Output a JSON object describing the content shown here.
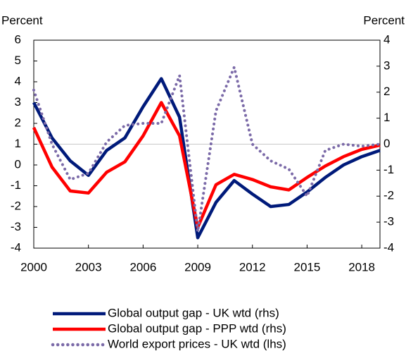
{
  "chart_data": {
    "type": "line",
    "y_label": "Percent",
    "y2_label": "Percent",
    "x": [
      2000,
      2001,
      2002,
      2003,
      2004,
      2005,
      2006,
      2007,
      2008,
      2009,
      2010,
      2011,
      2012,
      2013,
      2014,
      2015,
      2016,
      2017,
      2018,
      2019
    ],
    "xlim": [
      2000,
      2019
    ],
    "xticks": [
      2000,
      2003,
      2006,
      2009,
      2012,
      2015,
      2018
    ],
    "ylim": [
      -4,
      6
    ],
    "yticks": [
      -4,
      -3,
      -2,
      -1,
      0,
      1,
      2,
      3,
      4,
      5,
      6
    ],
    "y2lim": [
      -4,
      4
    ],
    "y2ticks": [
      -4,
      -3,
      -2,
      -1,
      0,
      1,
      2,
      3,
      4
    ],
    "zero_line": true,
    "series": [
      {
        "name": "Global output gap - UK wtd (rhs)",
        "color": "#001a7a",
        "axis": "y2",
        "style": "solid",
        "values": [
          1.6,
          0.24,
          -0.64,
          -1.2,
          -0.24,
          0.24,
          1.44,
          2.52,
          1.04,
          -3.6,
          -2.24,
          -1.4,
          -1.92,
          -2.4,
          -2.32,
          -1.84,
          -1.28,
          -0.8,
          -0.48,
          -0.24
        ]
      },
      {
        "name": "Global output gap - PPP wtd (rhs)",
        "color": "#ff0000",
        "axis": "y2",
        "style": "solid",
        "values": [
          0.64,
          -0.88,
          -1.8,
          -1.88,
          -1.08,
          -0.68,
          0.32,
          1.6,
          0.32,
          -3.2,
          -1.56,
          -1.16,
          -1.36,
          -1.64,
          -1.76,
          -1.28,
          -0.84,
          -0.48,
          -0.2,
          -0.04
        ]
      },
      {
        "name": "World export prices - UK wtd (lhs)",
        "color": "#7b6aa8",
        "axis": "y",
        "style": "dotted",
        "values": [
          3.6,
          1.0,
          -0.7,
          -0.4,
          1.1,
          1.9,
          2.0,
          2.0,
          4.3,
          -3.2,
          2.6,
          4.7,
          1.0,
          0.2,
          -0.2,
          -1.5,
          0.7,
          1.0,
          0.9,
          1.0
        ]
      }
    ]
  }
}
